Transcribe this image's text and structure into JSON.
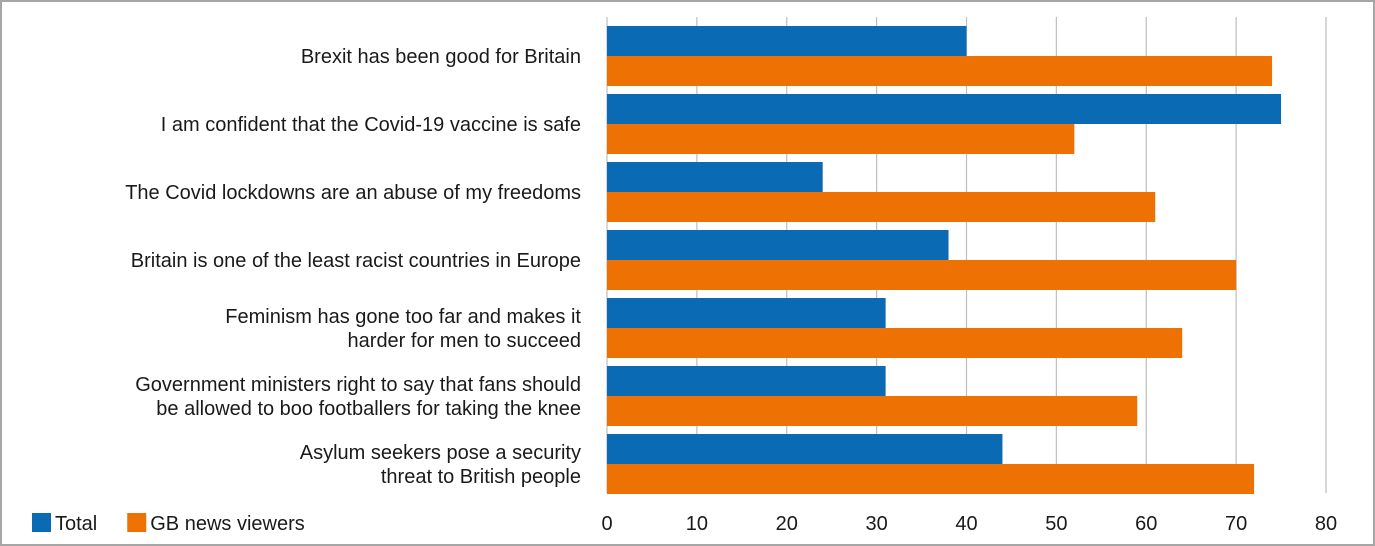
{
  "chart_data": {
    "type": "bar",
    "orientation": "horizontal",
    "categories": [
      [
        "Brexit has been good for Britain"
      ],
      [
        "I am confident that the Covid-19 vaccine is safe"
      ],
      [
        "The Covid lockdowns are an abuse of my freedoms"
      ],
      [
        "Britain is one of the least racist countries in Europe"
      ],
      [
        "Feminism has gone too far and makes it",
        "harder for men to succeed"
      ],
      [
        "Government ministers right to say that fans should",
        "be allowed to boo footballers for taking the knee"
      ],
      [
        "Asylum seekers pose a security",
        "threat to British people"
      ]
    ],
    "series": [
      {
        "name": "Total",
        "color": "#0a6ab3",
        "values": [
          40,
          75,
          24,
          38,
          31,
          31,
          44
        ]
      },
      {
        "name": "GB news viewers",
        "color": "#ee7203",
        "values": [
          74,
          52,
          61,
          70,
          64,
          59,
          72
        ]
      }
    ],
    "xlim": [
      0,
      80
    ],
    "xticks": [
      0,
      10,
      20,
      30,
      40,
      50,
      60,
      70,
      80
    ],
    "grid": true,
    "legend_position": "bottom-left"
  }
}
